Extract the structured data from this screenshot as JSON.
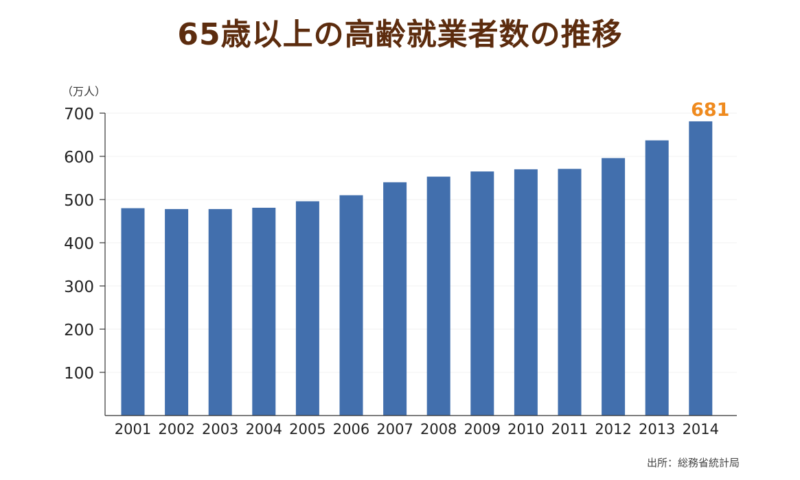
{
  "title": "65歳以上の高齢就業者数の推移",
  "source": "出所：総務省統計局",
  "colors": {
    "bar": "#426fad",
    "highlight": "#ef8a1e",
    "title": "#5c2c0e",
    "axis": "#333333",
    "grid": "#f0f0f0"
  },
  "chart_data": {
    "type": "bar",
    "title": "65歳以上の高齢就業者数の推移",
    "unit_label": "（万人）",
    "xlabel": "",
    "ylabel": "",
    "categories": [
      "2001",
      "2002",
      "2003",
      "2004",
      "2005",
      "2006",
      "2007",
      "2008",
      "2009",
      "2010",
      "2011",
      "2012",
      "2013",
      "2014"
    ],
    "values": [
      480,
      478,
      478,
      481,
      496,
      510,
      540,
      553,
      565,
      570,
      571,
      596,
      637,
      681
    ],
    "yticks": [
      100,
      200,
      300,
      400,
      500,
      600,
      700
    ],
    "ylim": [
      0,
      700
    ],
    "grid": true,
    "data_labels": [
      {
        "category": "2014",
        "text": "681"
      }
    ]
  }
}
